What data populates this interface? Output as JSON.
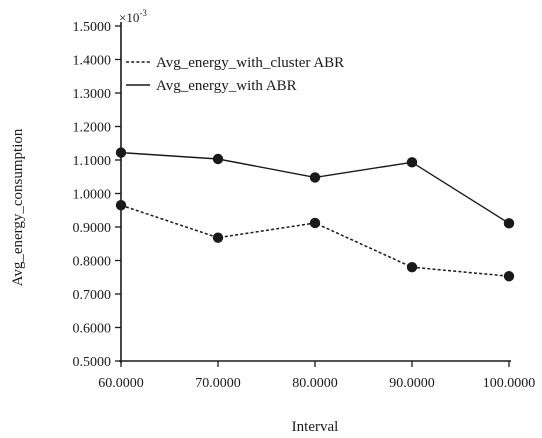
{
  "chart_data": {
    "type": "line",
    "title": "",
    "xlabel": "Interval",
    "ylabel": "Avg_energy_consumption",
    "y_multiplier": {
      "base": "×10",
      "exponent": "-3"
    },
    "xlim": [
      60,
      100
    ],
    "ylim": [
      0.5,
      1.5
    ],
    "x_ticks": [
      60,
      70,
      80,
      90,
      100
    ],
    "x_tick_labels": [
      "60.0000",
      "70.0000",
      "80.0000",
      "90.0000",
      "100.0000"
    ],
    "y_ticks": [
      0.5,
      0.6,
      0.7,
      0.8,
      0.9,
      1.0,
      1.1,
      1.2,
      1.3,
      1.4,
      1.5
    ],
    "y_tick_labels": [
      "0.5000",
      "0.6000",
      "0.7000",
      "0.8000",
      "0.9000",
      "1.0000",
      "1.1000",
      "1.2000",
      "1.3000",
      "1.4000",
      "1.5000"
    ],
    "x": [
      60,
      70,
      80,
      90,
      100
    ],
    "series": [
      {
        "name": "Avg_energy_with_cluster ABR",
        "line_style": "dotted",
        "color": "#1a1a1a",
        "values": [
          0.965,
          0.868,
          0.912,
          0.78,
          0.753
        ]
      },
      {
        "name": "Avg_energy_with ABR",
        "line_style": "solid",
        "color": "#1a1a1a",
        "values": [
          1.122,
          1.103,
          1.048,
          1.093,
          0.911
        ]
      }
    ],
    "grid": false,
    "legend_position": "top-left"
  }
}
